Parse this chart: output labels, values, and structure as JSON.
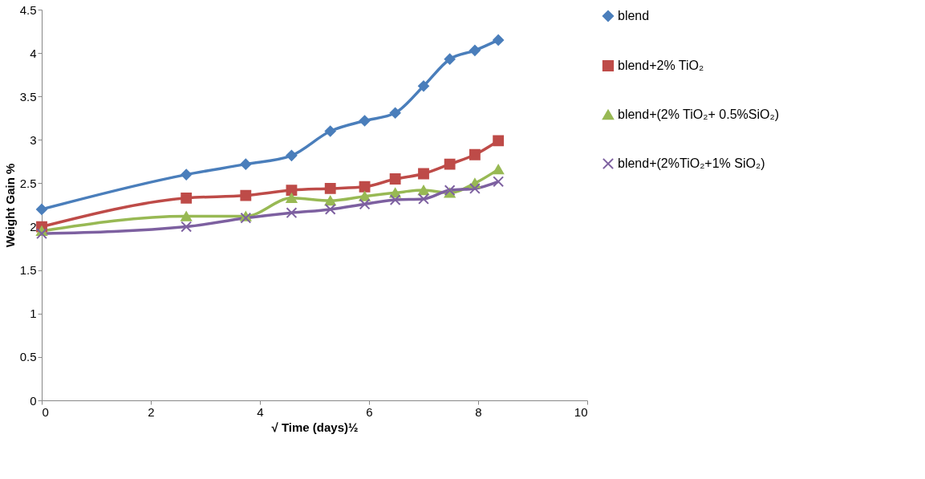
{
  "chart_data": {
    "type": "line",
    "xlabel": "√ Time (days)½",
    "ylabel": "Weight Gain %",
    "x": [
      0,
      2.65,
      3.74,
      4.58,
      5.29,
      5.92,
      6.48,
      7.0,
      7.48,
      7.94,
      8.37
    ],
    "series": [
      {
        "name": "blend",
        "color": "#4a7ebb",
        "marker": "diamond",
        "values": [
          2.2,
          2.6,
          2.72,
          2.82,
          3.1,
          3.22,
          3.31,
          3.62,
          3.93,
          4.03,
          4.15
        ]
      },
      {
        "name": "blend+2% TiO₂",
        "color": "#be4b48",
        "marker": "square",
        "values": [
          2.0,
          2.33,
          2.36,
          2.42,
          2.44,
          2.46,
          2.55,
          2.61,
          2.72,
          2.83,
          2.99
        ]
      },
      {
        "name": "blend+(2% TiO₂+ 0.5%SiO₂)",
        "color": "#98b954",
        "marker": "triangle",
        "values": [
          1.95,
          2.12,
          2.12,
          2.33,
          2.3,
          2.35,
          2.39,
          2.42,
          2.39,
          2.5,
          2.66
        ]
      },
      {
        "name": "blend+(2%TiO₂+1% SiO₂)",
        "color": "#7d60a0",
        "marker": "cross",
        "values": [
          1.92,
          2.0,
          2.1,
          2.16,
          2.2,
          2.26,
          2.31,
          2.32,
          2.42,
          2.44,
          2.52
        ]
      }
    ],
    "xlim": [
      0,
      10
    ],
    "xticks": [
      0,
      2,
      4,
      6,
      8,
      10
    ],
    "ylim": [
      0,
      4.5
    ],
    "yticks": [
      0,
      0.5,
      1,
      1.5,
      2,
      2.5,
      3,
      3.5,
      4,
      4.5
    ],
    "grid": false,
    "legend": "right",
    "line_style": "solid"
  }
}
